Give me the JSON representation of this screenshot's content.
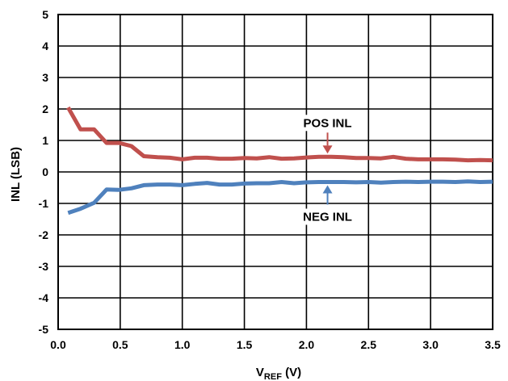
{
  "chart_data": {
    "type": "line",
    "xlabel_main": "V",
    "xlabel_sub": "REF",
    "xlabel_unit": " (V)",
    "ylabel": "INL (LSB)",
    "xlim": [
      0,
      3.5
    ],
    "ylim": [
      -5,
      5
    ],
    "x_ticks": [
      "0.0",
      "0.5",
      "1.0",
      "1.5",
      "2.0",
      "2.5",
      "3.0",
      "3.5"
    ],
    "y_ticks": [
      "5",
      "4",
      "3",
      "2",
      "1",
      "0",
      "-1",
      "-2",
      "-3",
      "-4",
      "-5"
    ],
    "grid": true,
    "series": [
      {
        "name": "POS INL",
        "color": "#c0504d",
        "x": [
          0.08,
          0.18,
          0.29,
          0.39,
          0.49,
          0.59,
          0.69,
          0.8,
          0.9,
          1.0,
          1.1,
          1.2,
          1.3,
          1.4,
          1.5,
          1.6,
          1.7,
          1.8,
          1.9,
          2.0,
          2.1,
          2.2,
          2.3,
          2.4,
          2.5,
          2.6,
          2.7,
          2.8,
          2.9,
          3.0,
          3.1,
          3.2,
          3.3,
          3.4,
          3.5
        ],
        "y": [
          2.05,
          1.35,
          1.35,
          0.92,
          0.92,
          0.82,
          0.5,
          0.47,
          0.45,
          0.4,
          0.45,
          0.45,
          0.42,
          0.42,
          0.44,
          0.43,
          0.47,
          0.42,
          0.43,
          0.46,
          0.48,
          0.48,
          0.47,
          0.44,
          0.44,
          0.43,
          0.48,
          0.42,
          0.4,
          0.4,
          0.4,
          0.39,
          0.37,
          0.38,
          0.37
        ]
      },
      {
        "name": "NEG INL",
        "color": "#4f81bd",
        "x": [
          0.08,
          0.18,
          0.29,
          0.39,
          0.49,
          0.59,
          0.69,
          0.8,
          0.9,
          1.0,
          1.1,
          1.2,
          1.3,
          1.4,
          1.5,
          1.6,
          1.7,
          1.8,
          1.9,
          2.0,
          2.1,
          2.2,
          2.3,
          2.4,
          2.5,
          2.6,
          2.7,
          2.8,
          2.9,
          3.0,
          3.1,
          3.2,
          3.3,
          3.4,
          3.5
        ],
        "y": [
          -1.3,
          -1.17,
          -0.98,
          -0.56,
          -0.57,
          -0.52,
          -0.42,
          -0.4,
          -0.4,
          -0.42,
          -0.38,
          -0.35,
          -0.4,
          -0.4,
          -0.37,
          -0.36,
          -0.36,
          -0.32,
          -0.36,
          -0.33,
          -0.32,
          -0.32,
          -0.32,
          -0.33,
          -0.32,
          -0.34,
          -0.32,
          -0.31,
          -0.32,
          -0.31,
          -0.31,
          -0.32,
          -0.3,
          -0.32,
          -0.31
        ]
      }
    ],
    "annotations": [
      {
        "text": "POS INL",
        "series": "POS INL",
        "arrow_x": 2.17,
        "arrow_y": 0.48
      },
      {
        "text": "NEG INL",
        "series": "NEG INL",
        "arrow_x": 2.17,
        "arrow_y": -0.32
      }
    ]
  }
}
